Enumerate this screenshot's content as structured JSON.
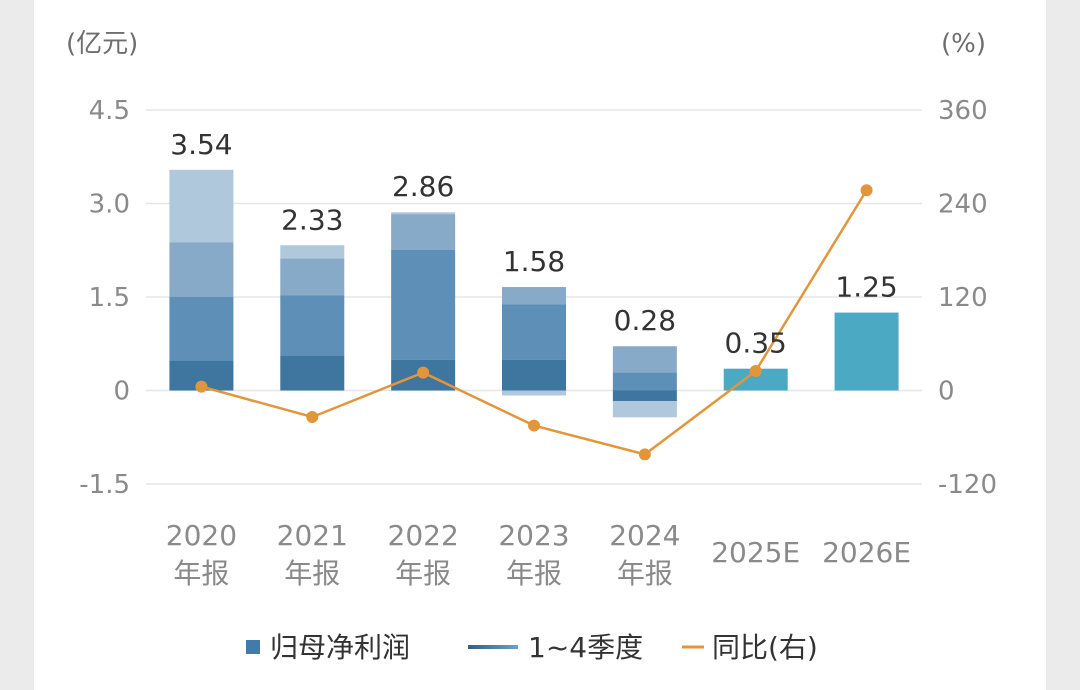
{
  "chart_data": {
    "type": "bar",
    "left_unit": "(亿元)",
    "right_unit": "(%)",
    "y_left": {
      "min": -1.5,
      "max": 4.5,
      "ticks": [
        "4.5",
        "3.0",
        "1.5",
        "0",
        "-1.5"
      ],
      "tick_values": [
        4.5,
        3.0,
        1.5,
        0,
        -1.5
      ]
    },
    "y_right": {
      "min": -120,
      "max": 360,
      "ticks": [
        "360",
        "240",
        "120",
        "0",
        "-120"
      ],
      "tick_values": [
        360,
        240,
        120,
        0,
        -120
      ]
    },
    "categories": [
      {
        "line1": "2020",
        "line2": "年报"
      },
      {
        "line1": "2021",
        "line2": "年报"
      },
      {
        "line1": "2022",
        "line2": "年报"
      },
      {
        "line1": "2023",
        "line2": "年报"
      },
      {
        "line1": "2024",
        "line2": "年报"
      },
      {
        "line1": "2025E",
        "line2": ""
      },
      {
        "line1": "2026E",
        "line2": ""
      }
    ],
    "annual_net_profit": [
      3.54,
      2.33,
      2.86,
      1.58,
      0.28,
      0.35,
      1.25
    ],
    "annual_labels": [
      "3.54",
      "2.33",
      "2.86",
      "1.58",
      "0.28",
      "0.35",
      "1.25"
    ],
    "quarterly_net_profit": [
      [
        0.48,
        1.02,
        0.88,
        1.16
      ],
      [
        0.56,
        0.97,
        0.59,
        0.21
      ],
      [
        0.49,
        1.77,
        0.57,
        0.03
      ],
      [
        0.49,
        0.89,
        0.28,
        -0.08
      ],
      [
        -0.17,
        0.29,
        0.42,
        -0.26
      ],
      null,
      null
    ],
    "yoy_growth_pct": [
      5,
      -34,
      23,
      -45,
      -82,
      25,
      257
    ],
    "legend": [
      {
        "label": "归母净利润",
        "marker": "square"
      },
      {
        "label": "1~4季度",
        "marker": "gradient-line"
      },
      {
        "label": "同比(右)",
        "marker": "line"
      }
    ],
    "colors": {
      "q1": "#3f76a0",
      "q2": "#5d8fb7",
      "q3": "#86aac8",
      "q4": "#afc8dc",
      "estimate": "#4ba9c4",
      "line": "#e2963b",
      "legend_square": "#3f7cab",
      "grid": "#e6e6e6"
    }
  }
}
